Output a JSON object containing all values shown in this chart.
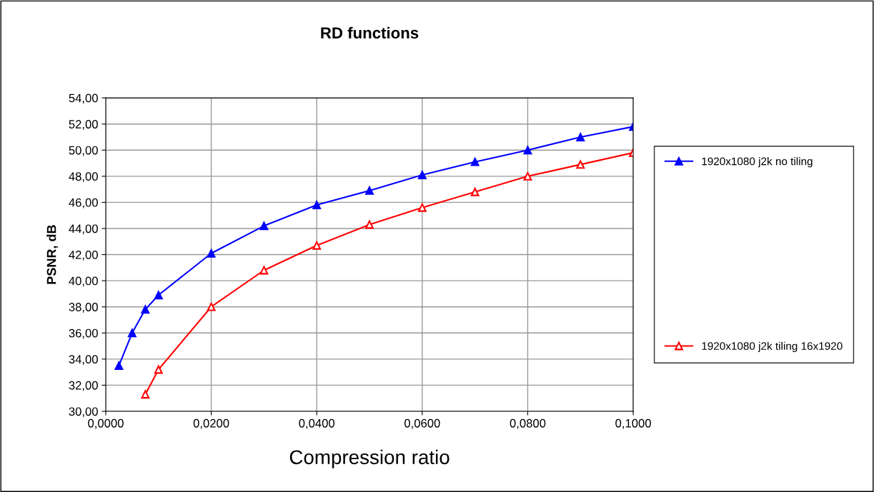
{
  "chart_data": {
    "type": "line",
    "title": "RD functions",
    "xlabel": "Compression ratio",
    "ylabel": "PSNR, dB",
    "series": [
      {
        "name": "1920x1080 j2k no tiling",
        "color": "#0000ff",
        "marker": "triangle",
        "x": [
          0.0025,
          0.005,
          0.0075,
          0.01,
          0.02,
          0.03,
          0.04,
          0.05,
          0.06,
          0.07,
          0.08,
          0.09,
          0.1
        ],
        "values": [
          33.5,
          36.0,
          37.8,
          38.9,
          42.1,
          44.2,
          45.8,
          46.9,
          48.1,
          49.1,
          50.0,
          51.0,
          51.8
        ]
      },
      {
        "name": "1920x1080 j2k tiling 16x1920",
        "color": "#ff0000",
        "marker": "triangle",
        "x": [
          0.0075,
          0.01,
          0.02,
          0.03,
          0.04,
          0.05,
          0.06,
          0.07,
          0.08,
          0.09,
          0.1
        ],
        "values": [
          31.3,
          33.2,
          38.0,
          40.8,
          42.7,
          44.3,
          45.6,
          46.8,
          48.0,
          48.9,
          49.8
        ]
      }
    ],
    "xlim": [
      0,
      0.1
    ],
    "xticks": [
      {
        "value": 0,
        "label": "0,0000"
      },
      {
        "value": 0.02,
        "label": "0,0200"
      },
      {
        "value": 0.04,
        "label": "0,0400"
      },
      {
        "value": 0.06,
        "label": "0,0600"
      },
      {
        "value": 0.08,
        "label": "0,0800"
      },
      {
        "value": 0.1,
        "label": "0,1000"
      }
    ],
    "ylim": [
      30,
      54
    ],
    "yticks": [
      {
        "value": 30,
        "label": "30,00"
      },
      {
        "value": 32,
        "label": "32,00"
      },
      {
        "value": 34,
        "label": "34,00"
      },
      {
        "value": 36,
        "label": "36,00"
      },
      {
        "value": 38,
        "label": "38,00"
      },
      {
        "value": 40,
        "label": "40,00"
      },
      {
        "value": 42,
        "label": "42,00"
      },
      {
        "value": 44,
        "label": "44,00"
      },
      {
        "value": 46,
        "label": "46,00"
      },
      {
        "value": 48,
        "label": "48,00"
      },
      {
        "value": 50,
        "label": "50,00"
      },
      {
        "value": 52,
        "label": "52,00"
      },
      {
        "value": 54,
        "label": "54,00"
      }
    ],
    "grid": true,
    "legend": "right",
    "line_style": "solid"
  }
}
